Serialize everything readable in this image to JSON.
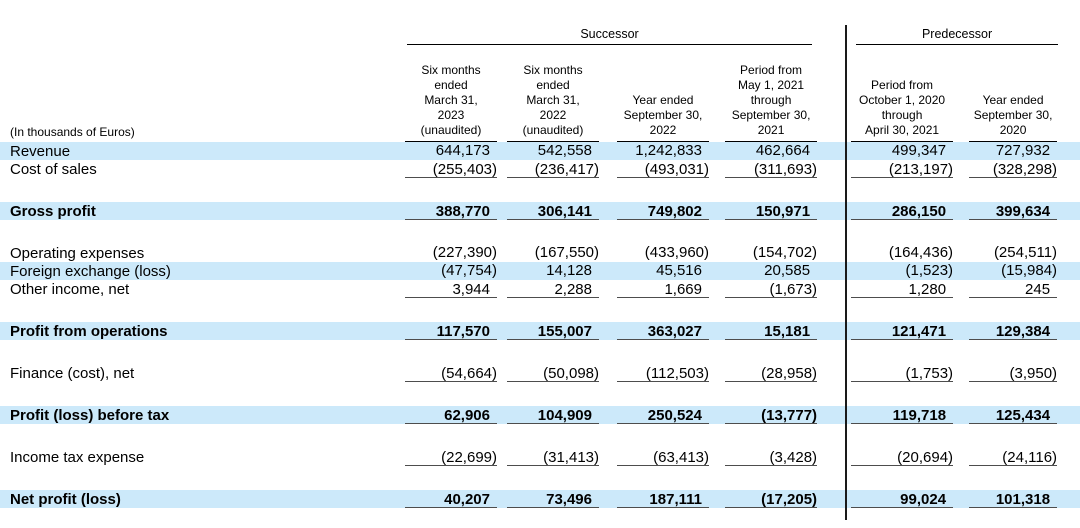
{
  "table": {
    "unit_label": "(In thousands of Euros)",
    "groups": [
      {
        "id": "successor",
        "label": "Successor",
        "span": 4
      },
      {
        "id": "predecessor",
        "label": "Predecessor",
        "span": 2
      }
    ],
    "columns": [
      {
        "group": "successor",
        "lines": [
          "Six months",
          "ended",
          "March 31,",
          "2023",
          "(unaudited)"
        ]
      },
      {
        "group": "successor",
        "lines": [
          "Six months",
          "ended",
          "March 31,",
          "2022",
          "(unaudited)"
        ]
      },
      {
        "group": "successor",
        "lines": [
          "Year ended",
          "September 30,",
          "2022"
        ]
      },
      {
        "group": "successor",
        "lines": [
          "Period from",
          "May 1, 2021",
          "through",
          "September 30,",
          "2021"
        ]
      },
      {
        "group": "predecessor",
        "lines": [
          "Period from",
          "October 1, 2020",
          "through",
          "April 30, 2021"
        ]
      },
      {
        "group": "predecessor",
        "lines": [
          "Year ended",
          "September 30,",
          "2020"
        ]
      }
    ],
    "rows": [
      {
        "label": "Revenue",
        "values": [
          "644,173",
          "542,558",
          "1,242,833",
          "462,664",
          "499,347",
          "727,932"
        ],
        "highlight": true,
        "bold": false,
        "underline": false,
        "gap_before": false
      },
      {
        "label": "Cost of sales",
        "values": [
          "(255,403)",
          "(236,417)",
          "(493,031)",
          "(311,693)",
          "(213,197)",
          "(328,298)"
        ],
        "highlight": false,
        "bold": false,
        "underline": true,
        "gap_before": false
      },
      {
        "label": "Gross profit",
        "values": [
          "388,770",
          "306,141",
          "749,802",
          "150,971",
          "286,150",
          "399,634"
        ],
        "highlight": true,
        "bold": true,
        "underline": true,
        "gap_before": true
      },
      {
        "label": "Operating expenses",
        "values": [
          "(227,390)",
          "(167,550)",
          "(433,960)",
          "(154,702)",
          "(164,436)",
          "(254,511)"
        ],
        "highlight": false,
        "bold": false,
        "underline": false,
        "gap_before": true
      },
      {
        "label": "Foreign exchange (loss)",
        "values": [
          "(47,754)",
          "14,128",
          "45,516",
          "20,585",
          "(1,523)",
          "(15,984)"
        ],
        "highlight": true,
        "bold": false,
        "underline": false,
        "gap_before": false
      },
      {
        "label": "Other income, net",
        "values": [
          "3,944",
          "2,288",
          "1,669",
          "(1,673)",
          "1,280",
          "245"
        ],
        "highlight": false,
        "bold": false,
        "underline": true,
        "gap_before": false
      },
      {
        "label": "Profit from operations",
        "values": [
          "117,570",
          "155,007",
          "363,027",
          "15,181",
          "121,471",
          "129,384"
        ],
        "highlight": true,
        "bold": true,
        "underline": true,
        "gap_before": true
      },
      {
        "label": "Finance (cost), net",
        "values": [
          "(54,664)",
          "(50,098)",
          "(112,503)",
          "(28,958)",
          "(1,753)",
          "(3,950)"
        ],
        "highlight": false,
        "bold": false,
        "underline": true,
        "gap_before": true
      },
      {
        "label": "Profit (loss) before tax",
        "values": [
          "62,906",
          "104,909",
          "250,524",
          "(13,777)",
          "119,718",
          "125,434"
        ],
        "highlight": true,
        "bold": true,
        "underline": true,
        "gap_before": true
      },
      {
        "label": "Income tax expense",
        "values": [
          "(22,699)",
          "(31,413)",
          "(63,413)",
          "(3,428)",
          "(20,694)",
          "(24,116)"
        ],
        "highlight": false,
        "bold": false,
        "underline": true,
        "gap_before": true
      },
      {
        "label": "Net profit (loss)",
        "values": [
          "40,207",
          "73,496",
          "187,111",
          "(17,205)",
          "99,024",
          "101,318"
        ],
        "highlight": true,
        "bold": true,
        "underline": true,
        "gap_before": true
      }
    ],
    "colors": {
      "highlight": "#cce9fa",
      "rule": "#000000",
      "number_underline": "#4d4d4d",
      "text": "#000000",
      "background": "#ffffff"
    }
  }
}
